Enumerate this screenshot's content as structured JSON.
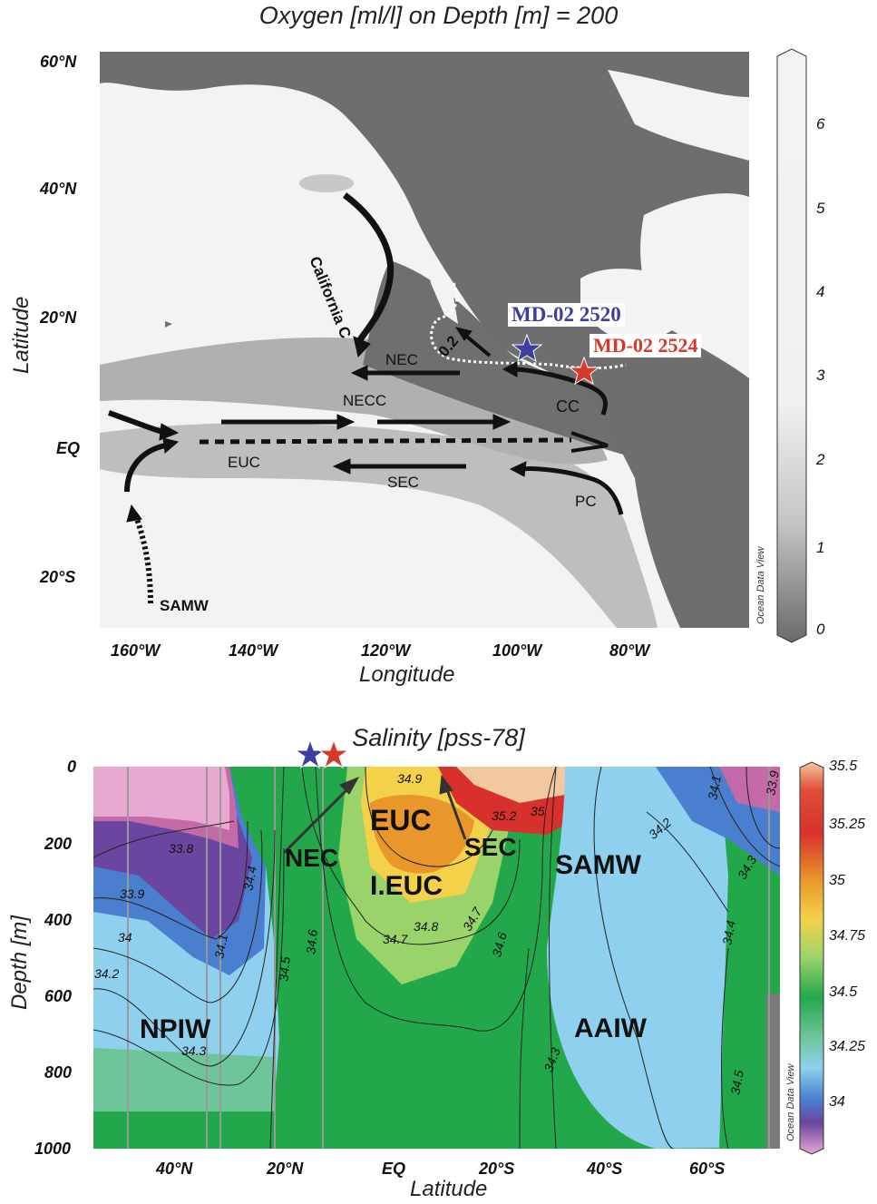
{
  "map": {
    "title": "Oxygen [ml/l] on Depth [m] = 200",
    "xlabel": "Longitude",
    "ylabel": "Latitude",
    "lat_ticks": [
      "60°N",
      "40°N",
      "20°N",
      "EQ",
      "20°S"
    ],
    "lon_ticks": [
      "160°W",
      "140°W",
      "120°W",
      "100°W",
      "80°W"
    ],
    "colorbar": {
      "ticks": [
        "6",
        "5",
        "4",
        "3",
        "2",
        "1",
        "0"
      ],
      "range": [
        0,
        7
      ]
    },
    "watermark": "Ocean Data View",
    "currents": {
      "california": "California C",
      "nec": "NEC",
      "necc": "NECC",
      "euc": "EUC",
      "sec": "SEC",
      "cc": "CC",
      "pc": "PC",
      "samw": "SAMW"
    },
    "contour_label": "0.2",
    "cores": [
      {
        "name": "MD-02 2520",
        "color": "#3b3fa0"
      },
      {
        "name": "MD-02 2524",
        "color": "#d8372a"
      }
    ]
  },
  "section": {
    "title": "Salinity [pss-78]",
    "xlabel": "Latitude",
    "ylabel": "Depth [m]",
    "depth_ticks": [
      "0",
      "200",
      "400",
      "600",
      "800",
      "1000"
    ],
    "lat_ticks": [
      "40°N",
      "20°N",
      "EQ",
      "20°S",
      "40°S",
      "60°S"
    ],
    "colorbar": {
      "ticks": [
        "35.5",
        "35.25",
        "35",
        "34.75",
        "34.5",
        "34.25",
        "34"
      ],
      "range": [
        33.75,
        35.5
      ]
    },
    "watermark": "Ocean Data View",
    "water_masses": {
      "npiw": "NPIW",
      "nec": "NEC",
      "euc": "EUC",
      "ieuc": "I.EUC",
      "sec": "SEC",
      "samw": "SAMW",
      "aaiw": "AAIW"
    },
    "contour_labels": [
      "33.8",
      "33.9",
      "34",
      "34.2",
      "34.1",
      "34.4",
      "34.5",
      "34.6",
      "34.7",
      "34.8",
      "34.9",
      "35",
      "35.2",
      "34.3",
      "34.6",
      "34.7",
      "33.9",
      "34.1",
      "34.2",
      "34.3",
      "34.4",
      "34.5",
      "34.3"
    ],
    "colors": {
      "pink": "#e7a9cf",
      "purple": "#6a46a0",
      "blue": "#4a7fd0",
      "lightblue": "#8fd0ee",
      "green": "#22a84a",
      "lightgreen": "#9ad36a",
      "yellow": "#f3d24a",
      "orange": "#e9962a",
      "red": "#d8302d",
      "peach": "#f2c8a0"
    }
  }
}
